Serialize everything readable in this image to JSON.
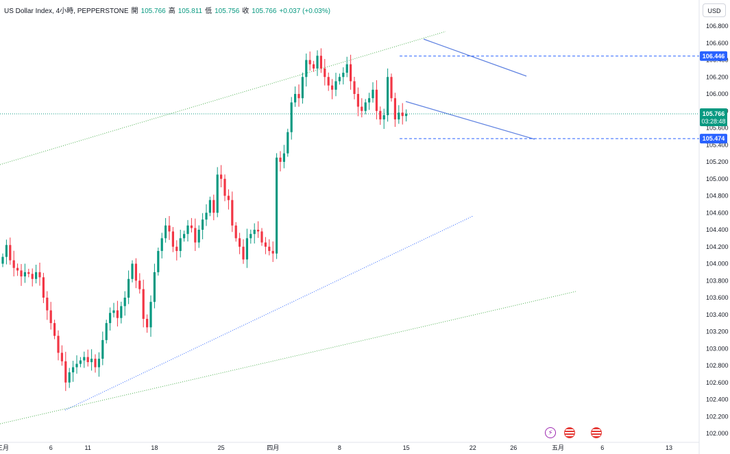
{
  "legend": {
    "symbol": "US Dollar Index, 4小時, PEPPERSTONE",
    "open_label": "開",
    "open": "105.766",
    "high_label": "高",
    "high": "105.811",
    "low_label": "低",
    "low": "105.756",
    "close_label": "收",
    "close": "105.766",
    "change": "+0.037 (+0.03%)"
  },
  "currency": "USD",
  "colors": {
    "up": "#089981",
    "down": "#f23645",
    "trend_green": "#4caf50",
    "trend_blue": "#2962ff",
    "level": "#2962ff"
  },
  "chart_data": {
    "type": "candlestick",
    "title": "US Dollar Index, 4小時, PEPPERSTONE",
    "ylim": [
      102.0,
      106.9
    ],
    "y_ticks": [
      "106.800",
      "106.600",
      "106.400",
      "106.200",
      "106.000",
      "105.800",
      "105.600",
      "105.400",
      "105.200",
      "105.000",
      "104.800",
      "104.600",
      "104.400",
      "104.200",
      "104.000",
      "103.800",
      "103.600",
      "103.400",
      "103.200",
      "103.000",
      "102.800",
      "102.600",
      "102.400",
      "102.200",
      "102.000"
    ],
    "x_ticks": [
      "三月",
      "6",
      "11",
      "18",
      "25",
      "四月",
      "8",
      "15",
      "22",
      "26",
      "五月",
      "6",
      "13"
    ],
    "x_ticks_xval": [
      0,
      13,
      23,
      41,
      59,
      73,
      91,
      109,
      127,
      138,
      150,
      162,
      180
    ],
    "last_price": "105.766",
    "countdown": "03:28:48",
    "levels": [
      {
        "label": "106.446",
        "value": 106.446
      },
      {
        "label": "105.474",
        "value": 105.474
      }
    ],
    "series": [
      {
        "name": "close",
        "values": [
          104.08,
          104.22,
          104.04,
          103.95,
          103.92,
          103.85,
          103.9,
          103.88,
          103.82,
          103.9,
          103.84,
          103.6,
          103.45,
          103.3,
          103.15,
          102.95,
          102.85,
          102.6,
          102.72,
          102.78,
          102.82,
          102.86,
          102.9,
          102.84,
          102.88,
          102.78,
          102.88,
          103.1,
          103.3,
          103.42,
          103.45,
          103.36,
          103.5,
          103.6,
          103.82,
          104.0,
          103.8,
          103.7,
          103.35,
          103.25,
          103.55,
          103.9,
          104.15,
          104.3,
          104.45,
          104.38,
          104.2,
          104.15,
          104.3,
          104.35,
          104.45,
          104.42,
          104.25,
          104.4,
          104.52,
          104.6,
          104.75,
          104.6,
          105.05,
          105.0,
          104.8,
          104.75,
          104.45,
          104.3,
          104.2,
          104.05,
          104.3,
          104.35,
          104.4,
          104.38,
          104.25,
          104.2,
          104.15,
          104.12,
          105.25,
          105.2,
          105.3,
          105.55,
          105.9,
          106.0,
          105.95,
          106.2,
          106.4,
          106.35,
          106.3,
          106.45,
          106.3,
          106.2,
          106.1,
          106.05,
          106.15,
          106.2,
          106.25,
          106.35,
          106.15,
          106.0,
          105.85,
          105.8,
          105.9,
          105.95,
          106.05,
          105.8,
          105.7,
          105.75,
          106.2,
          105.95,
          105.7,
          105.78,
          105.74,
          105.766
        ]
      }
    ]
  }
}
